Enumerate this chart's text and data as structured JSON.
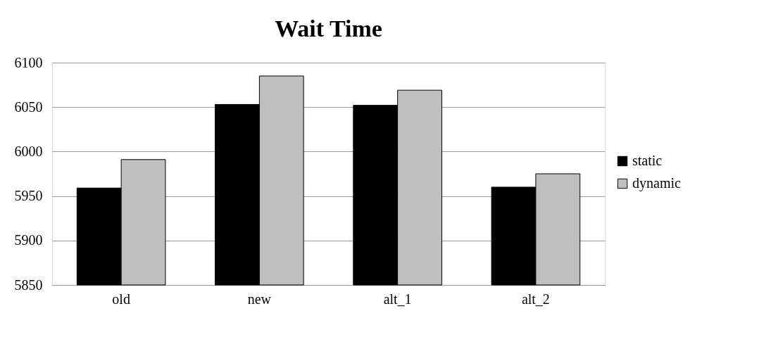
{
  "chart_data": {
    "type": "bar",
    "title": "Wait Time",
    "categories": [
      "old",
      "new",
      "alt_1",
      "alt_2"
    ],
    "series": [
      {
        "name": "static",
        "color": "#000000",
        "values": [
          5959,
          6053,
          6052,
          5960
        ]
      },
      {
        "name": "dynamic",
        "color": "#bfbfbf",
        "values": [
          5991,
          6085,
          6069,
          5975
        ]
      }
    ],
    "ylim": [
      5850,
      6100
    ],
    "yticks": [
      5850,
      5900,
      5950,
      6000,
      6050,
      6100
    ],
    "grid": "y",
    "legend": "right"
  }
}
